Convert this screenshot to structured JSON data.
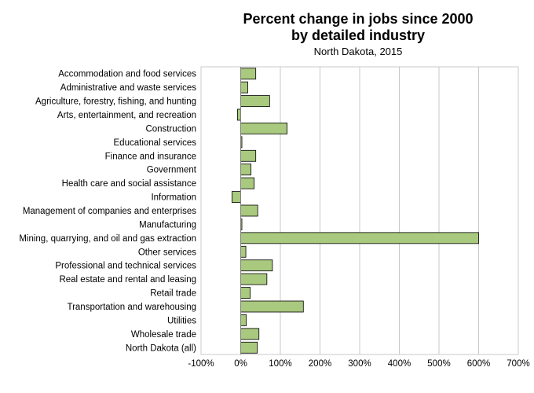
{
  "chart_data": {
    "type": "bar",
    "orientation": "horizontal",
    "title_line1": "Percent change in jobs since 2000",
    "title_line2": "by detailed industry",
    "subtitle": "North Dakota, 2015",
    "xlim": [
      -100,
      700
    ],
    "xticks": [
      -100,
      0,
      100,
      200,
      300,
      400,
      500,
      600,
      700
    ],
    "xtick_labels": [
      "-100%",
      "0%",
      "100%",
      "200%",
      "300%",
      "400%",
      "500%",
      "600%",
      "700%"
    ],
    "grid": true,
    "bar_color": "#a9c97f",
    "categories": [
      "Accommodation and food services",
      "Administrative and waste services",
      "Agriculture, forestry, fishing, and hunting",
      "Arts, entertainment, and recreation",
      "Construction",
      "Educational services",
      "Finance and insurance",
      "Government",
      "Health care and social assistance",
      "Information",
      "Management of companies and enterprises",
      "Manufacturing",
      "Mining, quarrying, and oil and gas extraction",
      "Other services",
      "Professional and technical services",
      "Real estate and rental and leasing",
      "Retail trade",
      "Transportation and warehousing",
      "Utilities",
      "Wholesale trade",
      "North Dakota (all)"
    ],
    "values": [
      38,
      18,
      73,
      -8,
      117,
      3,
      38,
      26,
      34,
      -22,
      43,
      3,
      600,
      13,
      80,
      66,
      24,
      158,
      14,
      46,
      42
    ]
  }
}
